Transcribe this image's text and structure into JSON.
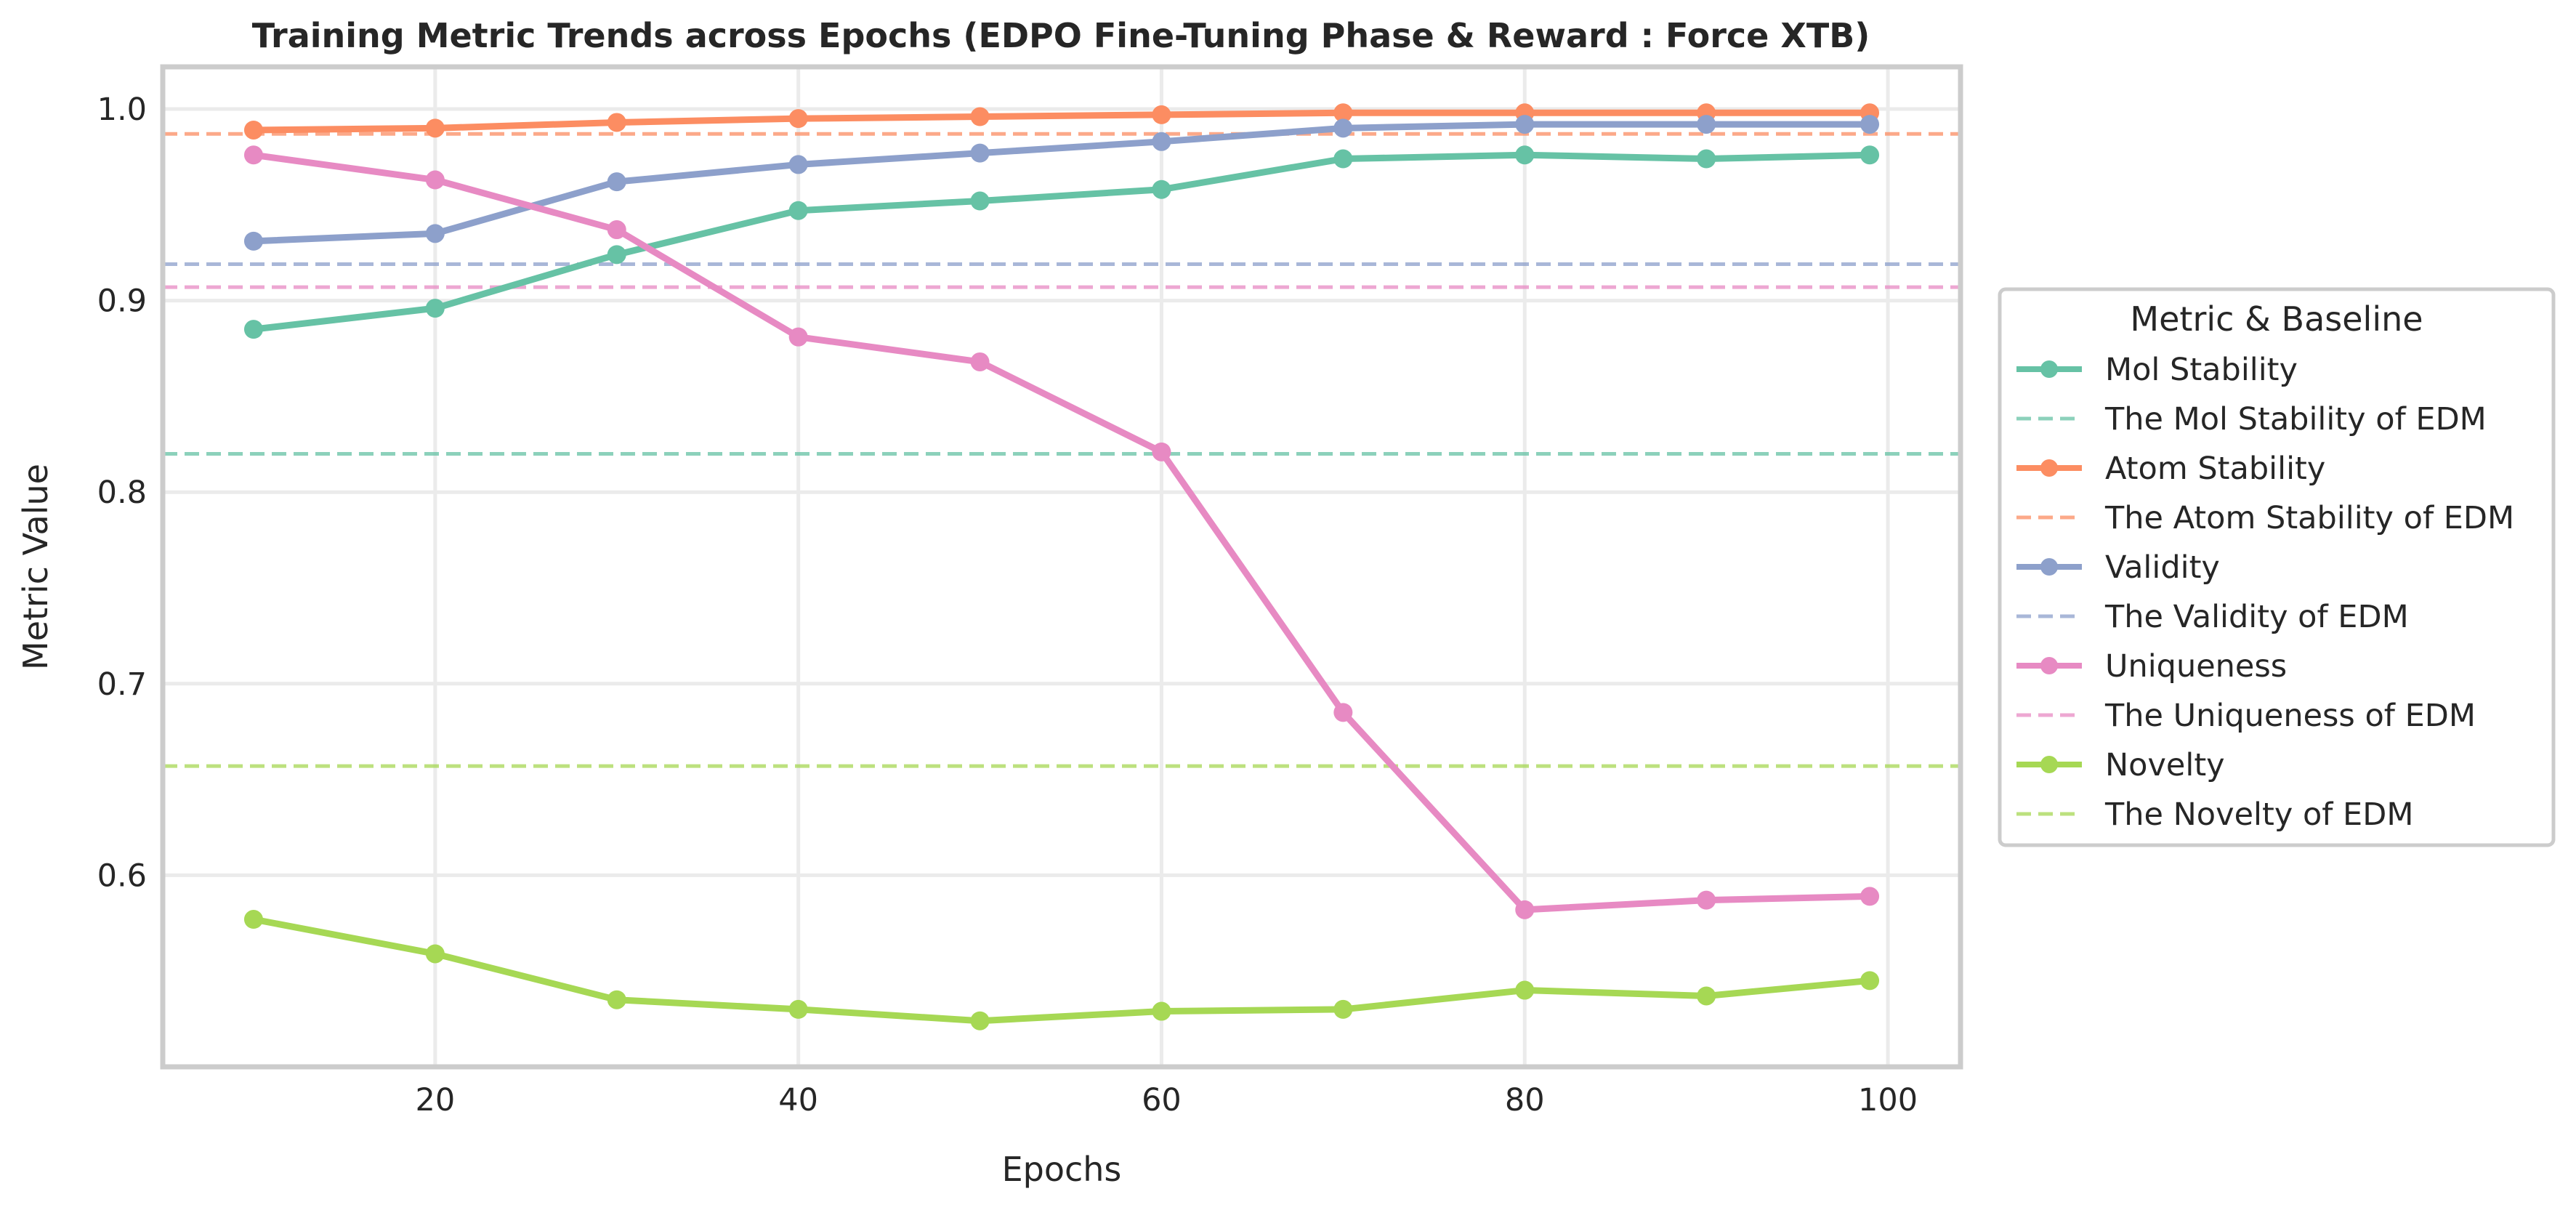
{
  "chart_data": {
    "type": "line",
    "title": "Training Metric Trends across Epochs (EDPO Fine-Tuning Phase & Reward : Force XTB)",
    "xlabel": "Epochs",
    "ylabel": "Metric Value",
    "xlim": [
      5,
      104
    ],
    "ylim": [
      0.5,
      1.022
    ],
    "xticks": [
      20,
      40,
      60,
      80,
      100
    ],
    "yticks": [
      0.6,
      0.7,
      0.8,
      0.9,
      1.0
    ],
    "xtick_labels": [
      "20",
      "40",
      "60",
      "80",
      "100"
    ],
    "ytick_labels": [
      "0.6",
      "0.7",
      "0.8",
      "0.9",
      "1.0"
    ],
    "grid": true,
    "legend_title": "Metric & Baseline",
    "legend_position": "right, outside plot",
    "x": [
      10,
      20,
      30,
      40,
      50,
      60,
      70,
      80,
      90,
      99
    ],
    "series": [
      {
        "name": "Mol Stability",
        "color": "#66c2a5",
        "values": [
          0.885,
          0.896,
          0.924,
          0.947,
          0.952,
          0.958,
          0.974,
          0.976,
          0.974,
          0.976
        ]
      },
      {
        "name": "Atom Stability",
        "color": "#fc8d62",
        "values": [
          0.989,
          0.99,
          0.993,
          0.995,
          0.996,
          0.997,
          0.998,
          0.998,
          0.998,
          0.998
        ]
      },
      {
        "name": "Validity",
        "color": "#8da0cb",
        "values": [
          0.931,
          0.935,
          0.962,
          0.971,
          0.977,
          0.983,
          0.99,
          0.992,
          0.992,
          0.992
        ]
      },
      {
        "name": "Uniqueness",
        "color": "#e78ac3",
        "values": [
          0.976,
          0.963,
          0.937,
          0.881,
          0.868,
          0.821,
          0.685,
          0.582,
          0.587,
          0.589
        ]
      },
      {
        "name": "Novelty",
        "color": "#a6d854",
        "values": [
          0.577,
          0.559,
          0.535,
          0.53,
          0.524,
          0.529,
          0.53,
          0.54,
          0.537,
          0.545
        ]
      }
    ],
    "baselines": [
      {
        "name": "The Mol Stability of EDM",
        "color": "#66c2a5",
        "value": 0.82
      },
      {
        "name": "The Atom Stability of EDM",
        "color": "#fc8d62",
        "value": 0.987
      },
      {
        "name": "The Validity of EDM",
        "color": "#8da0cb",
        "value": 0.919
      },
      {
        "name": "The Uniqueness of EDM",
        "color": "#e78ac3",
        "value": 0.907
      },
      {
        "name": "The Novelty of EDM",
        "color": "#a6d854",
        "value": 0.657
      }
    ]
  }
}
